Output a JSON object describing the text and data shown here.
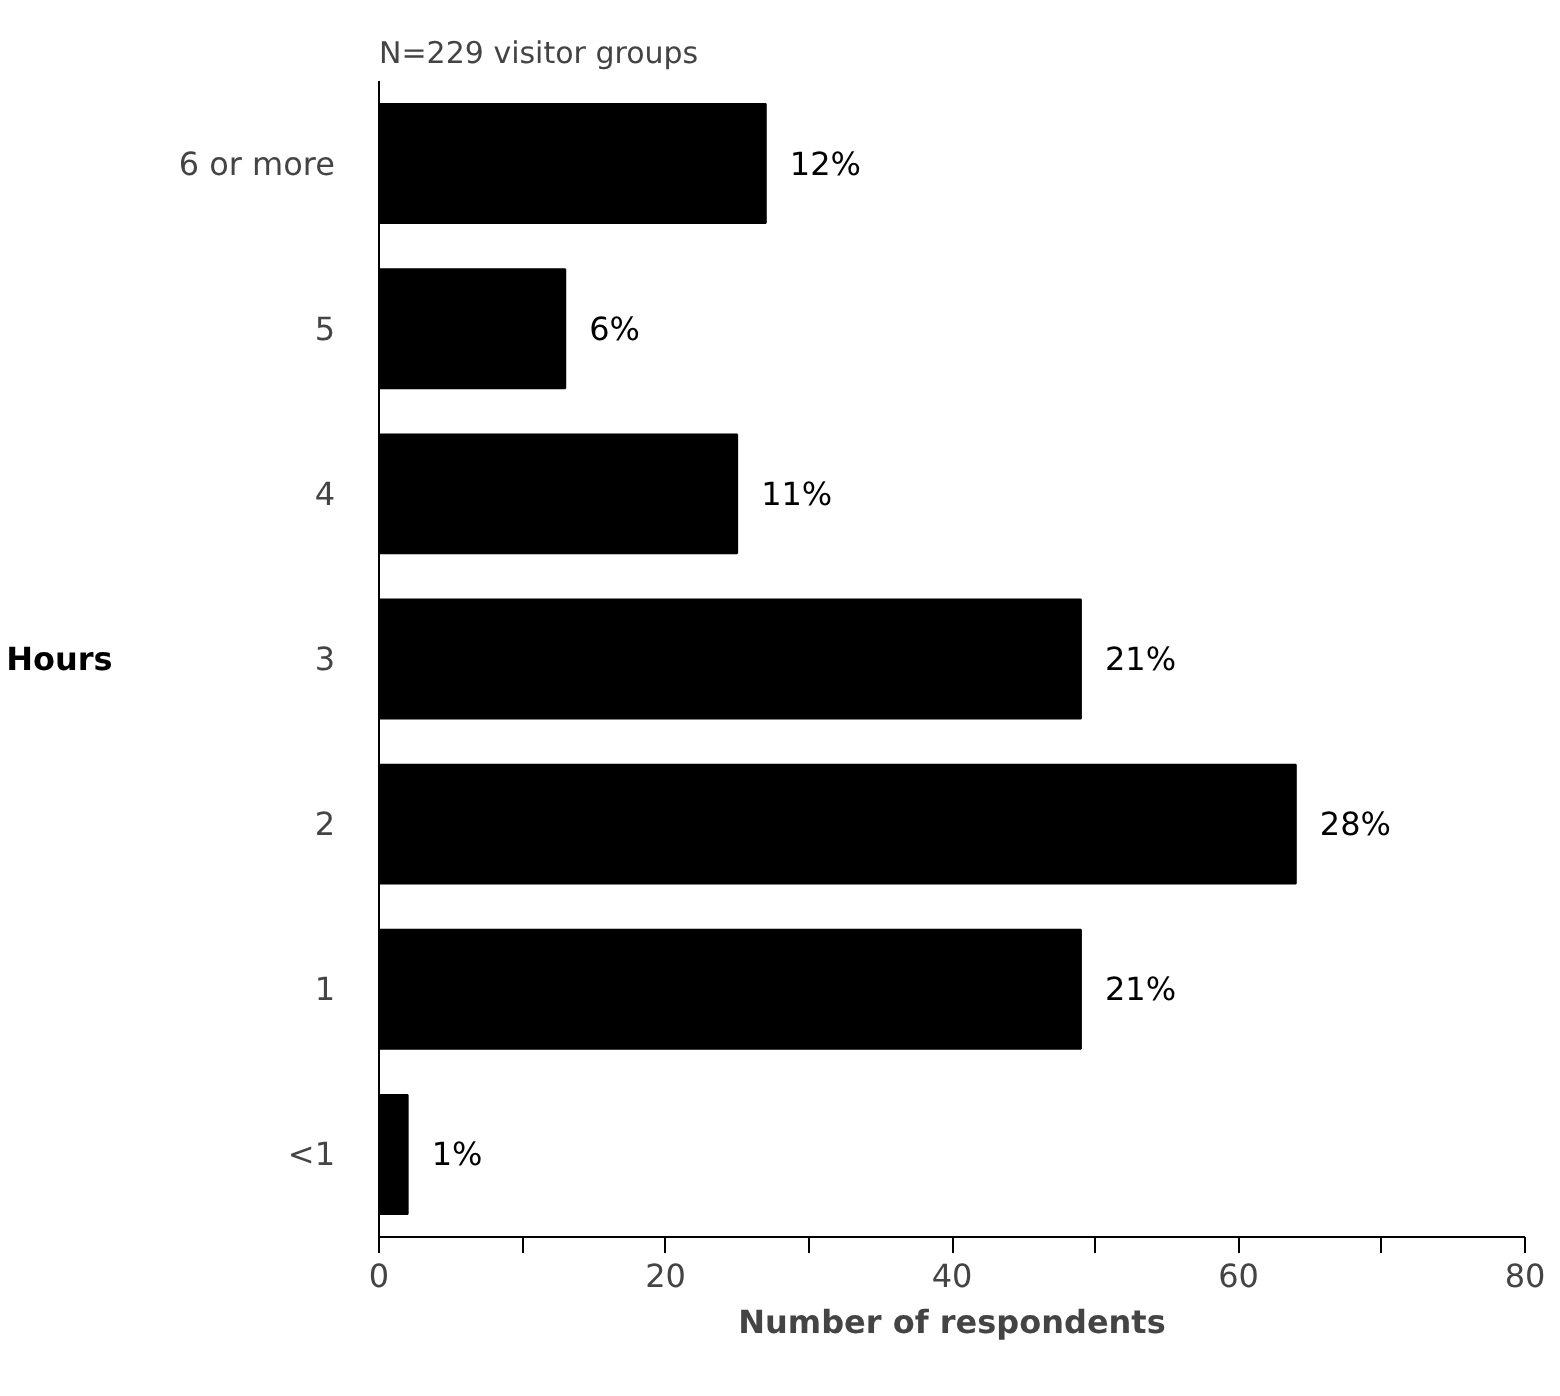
{
  "chart_data": {
    "type": "bar",
    "orientation": "horizontal",
    "title": "N=229 visitor groups",
    "xlabel": "Number of respondents",
    "ylabel": "Hours",
    "categories": [
      "6 or more",
      "5",
      "4",
      "3",
      "2",
      "1",
      "<1"
    ],
    "values": [
      27,
      13,
      25,
      49,
      64,
      49,
      2
    ],
    "annotations": [
      {
        "text": "12%",
        "x": 27,
        "y": "6 or more"
      },
      {
        "text": "6%",
        "x": 13,
        "y": "5"
      },
      {
        "text": "11%",
        "x": 25,
        "y": "4"
      },
      {
        "text": "21%",
        "x": 49,
        "y": "3"
      },
      {
        "text": "28%",
        "x": 64,
        "y": "2"
      },
      {
        "text": "21%",
        "x": 49,
        "y": "1"
      },
      {
        "text": "1%",
        "x": 2,
        "y": "<1"
      }
    ],
    "color": "#000000",
    "xlim": [
      0,
      80
    ],
    "xticks": [
      0,
      {
        "value": 10,
        "label": null
      },
      20,
      {
        "value": 30,
        "label": null
      },
      40,
      {
        "value": 50,
        "label": null
      },
      60,
      {
        "value": 70,
        "label": null
      },
      80
    ],
    "grid": false
  }
}
